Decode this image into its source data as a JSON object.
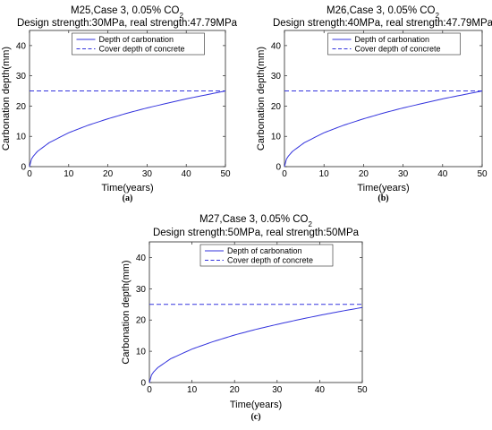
{
  "figure": {
    "panels": [
      {
        "panel_label": "(a)",
        "title_prefix": "M25,Case 3, 0.05% CO",
        "title_subscript": "2",
        "title_line2": "Design strength:30MPa, real strength:47.79MPa",
        "xlabel": "Time(years)",
        "ylabel": "Carbonation depth(mm)",
        "x_ticks": [
          "0",
          "10",
          "20",
          "30",
          "40",
          "50"
        ],
        "y_ticks": [
          "0",
          "10",
          "20",
          "30",
          "40"
        ],
        "legend": [
          "Depth of carbonation",
          "Cover depth of concrete"
        ]
      },
      {
        "panel_label": "(b)",
        "title_prefix": "M26,Case 3, 0.05% CO",
        "title_subscript": "2",
        "title_line2": "Design strength:40MPa, real strength:47.79MPa",
        "xlabel": "Time(years)",
        "ylabel": "Carbonation depth(mm)",
        "x_ticks": [
          "0",
          "10",
          "20",
          "30",
          "40",
          "50"
        ],
        "y_ticks": [
          "0",
          "10",
          "20",
          "30",
          "40"
        ],
        "legend": [
          "Depth of carbonation",
          "Cover depth of concrete"
        ]
      },
      {
        "panel_label": "(c)",
        "title_prefix": "M27,Case 3, 0.05% CO",
        "title_subscript": "2",
        "title_line2": "Design strength:50MPa, real strength:50MPa",
        "xlabel": "Time(years)",
        "ylabel": "Carbonation depth(mm)",
        "x_ticks": [
          "0",
          "10",
          "20",
          "30",
          "40",
          "50"
        ],
        "y_ticks": [
          "0",
          "10",
          "20",
          "30",
          "40"
        ],
        "legend": [
          "Depth of carbonation",
          "Cover depth of concrete"
        ]
      }
    ]
  },
  "colors": {
    "series": "#3333dd",
    "axis": "#262626"
  },
  "chart_data": [
    {
      "type": "line",
      "title": "M25,Case 3, 0.05% CO2 — Design strength:30MPa, real strength:47.79MPa",
      "xlabel": "Time(years)",
      "ylabel": "Carbonation depth(mm)",
      "xlim": [
        0,
        50
      ],
      "ylim": [
        0,
        45
      ],
      "legend_position": "top",
      "series": [
        {
          "name": "Depth of carbonation",
          "style": "solid",
          "x": [
            0,
            0.5,
            1,
            2,
            5,
            10,
            15,
            20,
            25,
            30,
            35,
            40,
            45,
            50
          ],
          "y": [
            0,
            2.5,
            3.5,
            5.0,
            7.9,
            11.2,
            13.7,
            15.8,
            17.7,
            19.4,
            20.9,
            22.4,
            23.7,
            25.0
          ]
        },
        {
          "name": "Cover depth of concrete",
          "style": "dashed",
          "x": [
            0,
            50
          ],
          "y": [
            25,
            25
          ]
        }
      ]
    },
    {
      "type": "line",
      "title": "M26,Case 3, 0.05% CO2 — Design strength:40MPa, real strength:47.79MPa",
      "xlabel": "Time(years)",
      "ylabel": "Carbonation depth(mm)",
      "xlim": [
        0,
        50
      ],
      "ylim": [
        0,
        45
      ],
      "legend_position": "top",
      "series": [
        {
          "name": "Depth of carbonation",
          "style": "solid",
          "x": [
            0,
            0.5,
            1,
            2,
            5,
            10,
            15,
            20,
            25,
            30,
            35,
            40,
            45,
            50
          ],
          "y": [
            0,
            2.5,
            3.5,
            5.0,
            7.9,
            11.2,
            13.7,
            15.8,
            17.7,
            19.4,
            20.9,
            22.4,
            23.7,
            25.0
          ]
        },
        {
          "name": "Cover depth of concrete",
          "style": "dashed",
          "x": [
            0,
            50
          ],
          "y": [
            25,
            25
          ]
        }
      ]
    },
    {
      "type": "line",
      "title": "M27,Case 3, 0.05% CO2 — Design strength:50MPa, real strength:50MPa",
      "xlabel": "Time(years)",
      "ylabel": "Carbonation depth(mm)",
      "xlim": [
        0,
        50
      ],
      "ylim": [
        0,
        45
      ],
      "legend_position": "top",
      "series": [
        {
          "name": "Depth of carbonation",
          "style": "solid",
          "x": [
            0,
            0.5,
            1,
            2,
            5,
            10,
            15,
            20,
            25,
            30,
            35,
            40,
            45,
            50
          ],
          "y": [
            0,
            2.4,
            3.4,
            4.8,
            7.6,
            10.7,
            13.1,
            15.2,
            17.0,
            18.6,
            20.1,
            21.5,
            22.8,
            24.0
          ]
        },
        {
          "name": "Cover depth of concrete",
          "style": "dashed",
          "x": [
            0,
            50
          ],
          "y": [
            25,
            25
          ]
        }
      ]
    }
  ]
}
